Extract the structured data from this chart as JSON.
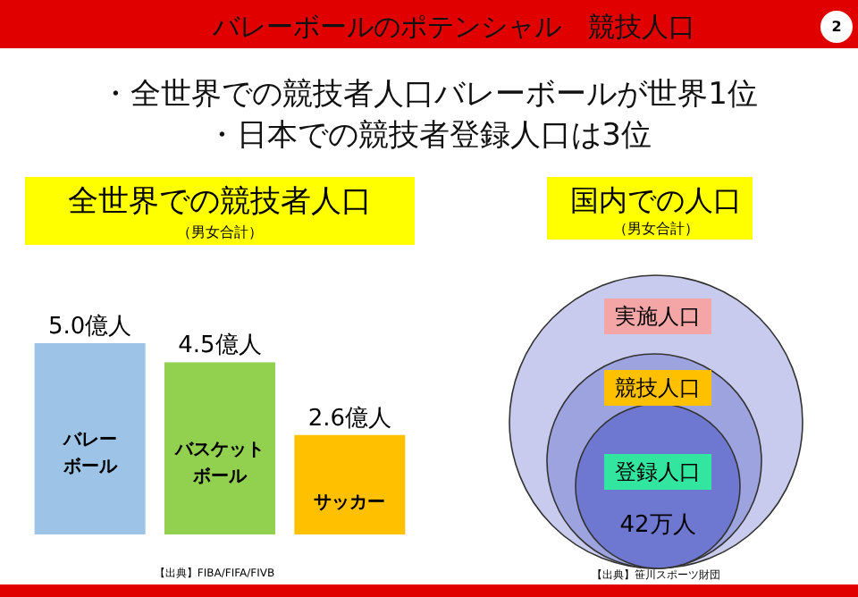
{
  "chart_data": [
    {
      "type": "other",
      "title": "バレーボールのポテンシャル　競技人口",
      "annotations": [
        "2",
        "・全世界での競技者人口バレーボールが世界1位",
        "・日本での競技者登録人口は3位"
      ]
    },
    {
      "type": "bar",
      "title": "全世界での競技者人口",
      "subtitle": "（男女合計）",
      "categories": [
        "バレーボール",
        "バスケットボール",
        "サッカー"
      ],
      "values": [
        5.0,
        4.5,
        2.6
      ],
      "colors": [
        "#9dc3e6",
        "#92d050",
        "#ffc000"
      ],
      "value_labels": [
        "5.0億人",
        "4.5億人",
        "2.6億人"
      ],
      "annotations": [
        "【出典】FIBA/FIFA/FIVB"
      ]
    },
    {
      "type": "other",
      "title": "国内での人口",
      "subtitle": "（男女合計）",
      "categories": [
        "実施人口",
        "競技人口",
        "登録人口"
      ],
      "colors": [
        "#f4a6a6",
        "#ffc000",
        "#33e6a0"
      ],
      "annotations": [
        "42万人",
        "【出典】笹川スポーツ財団"
      ]
    }
  ]
}
